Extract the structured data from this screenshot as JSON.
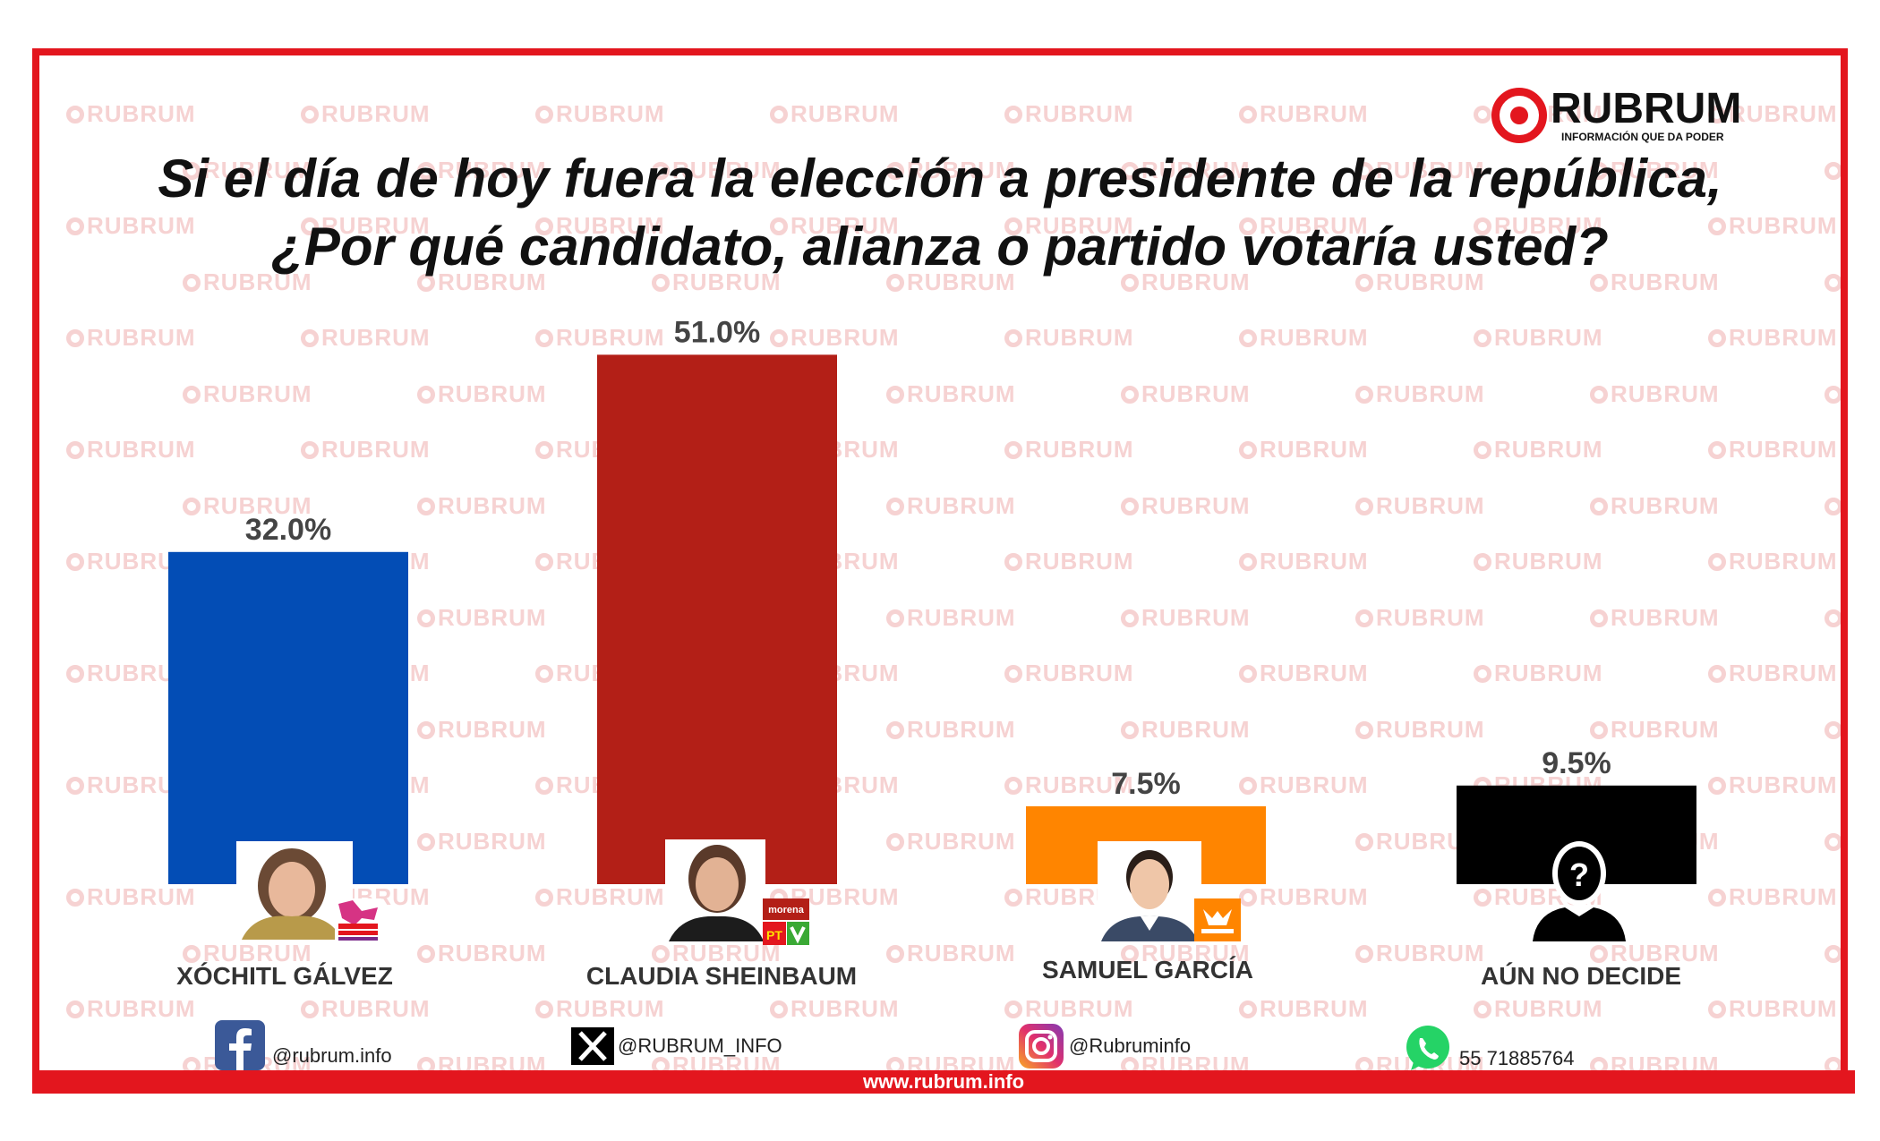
{
  "brand": {
    "name": "RUBRUM",
    "tagline": "INFORMACIÓN QUE DA PODER",
    "watermark": "RUBRUM"
  },
  "title_line1": "Si el día de hoy fuera la elección a presidente de la república,",
  "title_line2": "¿Por qué candidato, alianza o partido votaría usted?",
  "colors": {
    "frame": "#e3161e",
    "xochitl": "#034db5",
    "claudia": "#b31f17",
    "samuel": "#ff8500",
    "undecided": "#000000"
  },
  "chart_data": {
    "type": "bar",
    "categories": [
      "XÓCHITL GÁLVEZ",
      "CLAUDIA SHEINBAUM",
      "SAMUEL GARCÍA",
      "AÚN NO DECIDE"
    ],
    "values": [
      32.0,
      51.0,
      7.5,
      9.5
    ],
    "value_labels": [
      "32.0%",
      "51.0%",
      "7.5%",
      "9.5%"
    ],
    "colors": [
      "#034db5",
      "#b31f17",
      "#ff8500",
      "#000000"
    ],
    "title": "Si el día de hoy fuera la elección a presidente de la república, ¿Por qué candidato, alianza o partido votaría usted?",
    "xlabel": "",
    "ylabel": "",
    "grid": false,
    "legend": "none"
  },
  "party_badges": {
    "xochitl": "FRENTE AMPLIO POR MÉXICO",
    "claudia_top": "morena",
    "claudia_pt": "PT",
    "samuel": "MOVIMIENTO CIUDADANO"
  },
  "undecided_mark": "?",
  "social": {
    "facebook": "@rubrum.info",
    "x": "@RUBRUM_INFO",
    "instagram": "@Rubruminfo",
    "whatsapp": "55 71885764"
  },
  "website": "www.rubrum.info"
}
